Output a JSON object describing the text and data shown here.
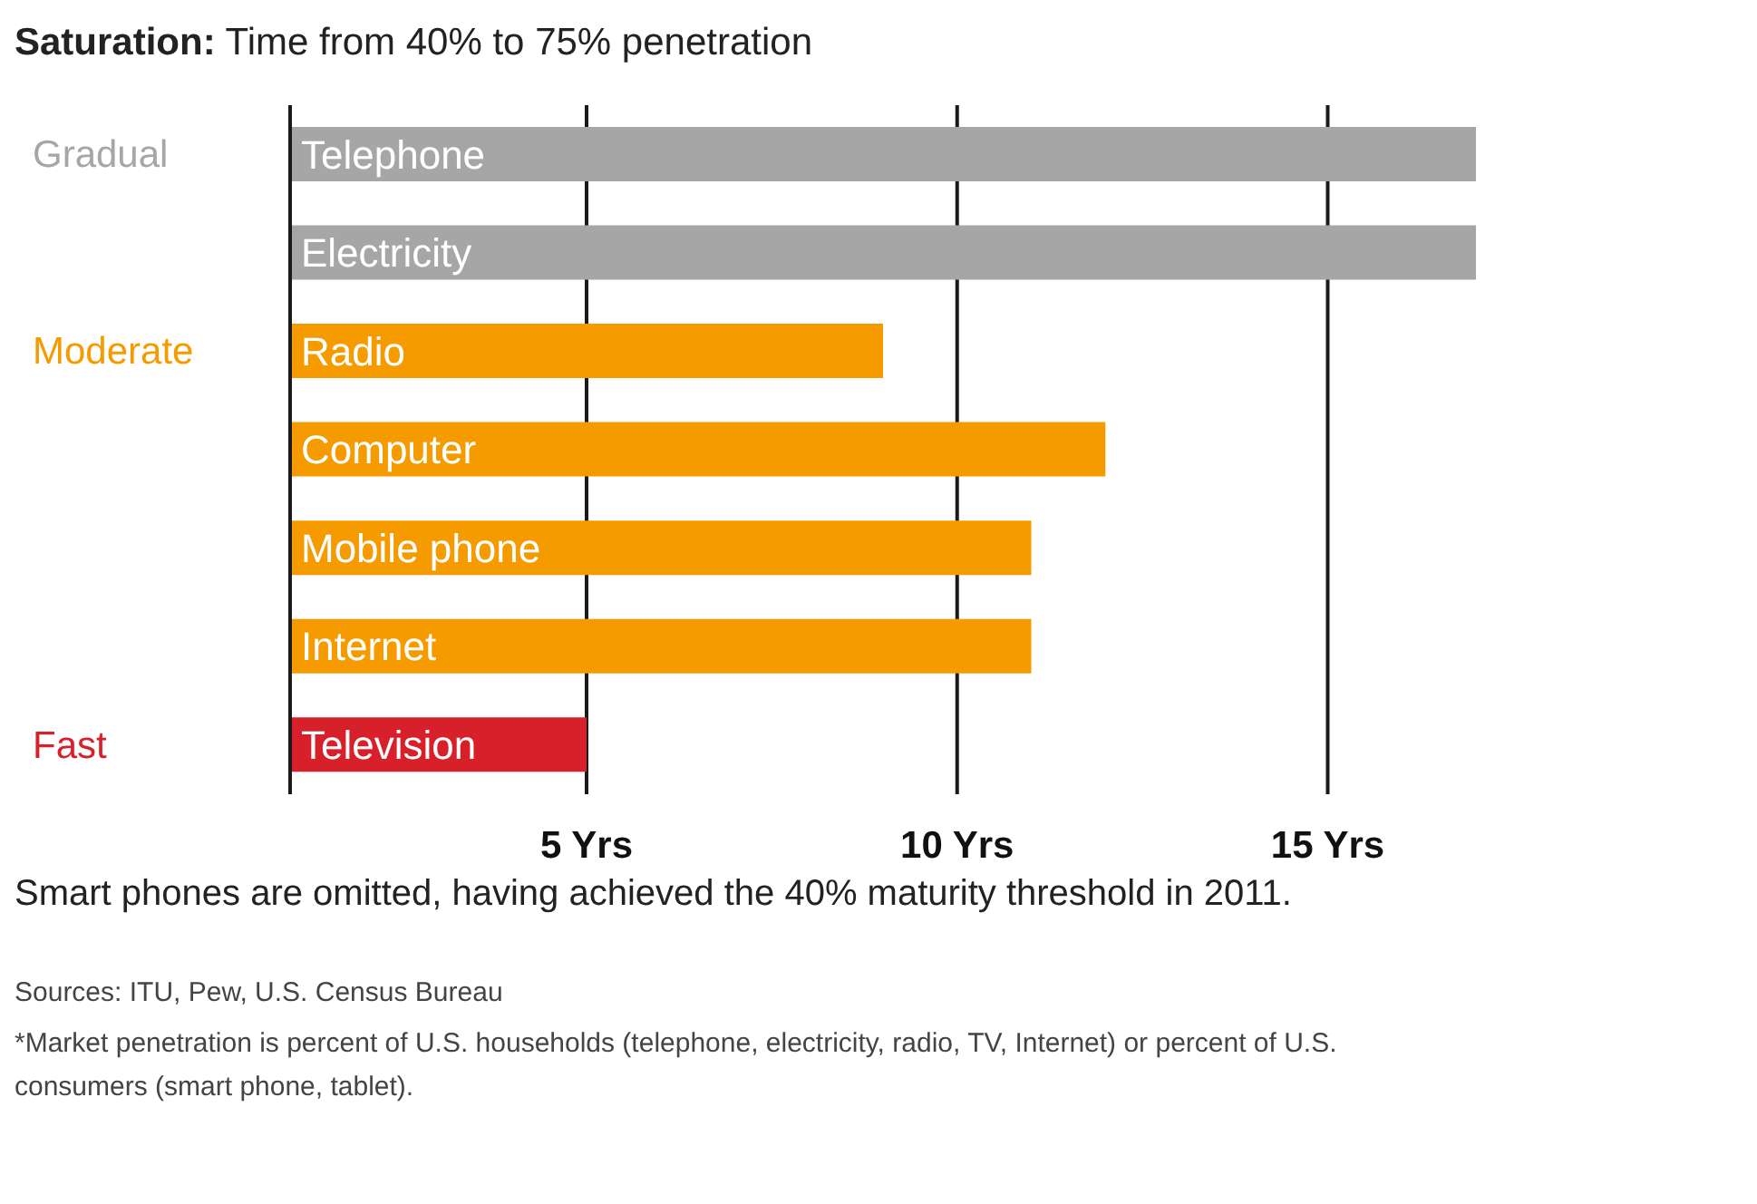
{
  "chart_data": {
    "type": "bar",
    "orientation": "horizontal",
    "title": "Saturation: Time from 40% to 75% penetration",
    "categories": [
      "Telephone",
      "Electricity",
      "Radio",
      "Computer",
      "Mobile phone",
      "Internet",
      "Television"
    ],
    "values": [
      17,
      17,
      9,
      12,
      11,
      11,
      5
    ],
    "colors": [
      "#a6a6a6",
      "#a6a6a6",
      "#f59b00",
      "#f59b00",
      "#f59b00",
      "#f59b00",
      "#d7202a"
    ],
    "xlim": [
      1,
      17
    ],
    "xticks": [
      {
        "value": 5,
        "label": "5 Yrs"
      },
      {
        "value": 10,
        "label": "10 Yrs"
      },
      {
        "value": 15,
        "label": "15 Yrs"
      }
    ],
    "grid": "x",
    "tick_labels": "x",
    "annotations": [
      "Gradual",
      "Moderate",
      "Fast",
      "Smart phones are omitted, having achieved the 40% maturity threshold in 2011.",
      "Sources: ITU, Pew, U.S. Census Bureau",
      "*Market penetration is percent of U.S. households (telephone, electricity, radio, TV, Internet) or percent of U.S. consumers (smart phone, tablet)."
    ]
  }
}
